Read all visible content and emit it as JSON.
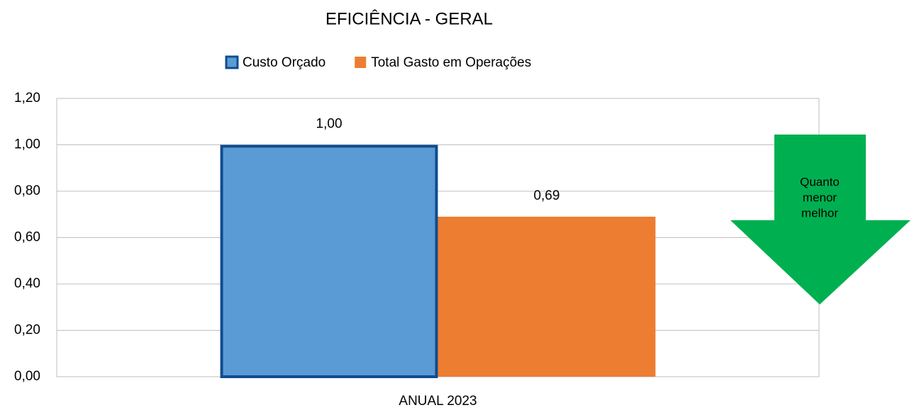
{
  "chart_data": {
    "type": "bar",
    "title": "EFICIÊNCIA - GERAL",
    "categories": [
      "ANUAL 2023"
    ],
    "series": [
      {
        "name": "Custo Orçado",
        "color": "#5b9bd5",
        "edgecolor": "#0f4c8f",
        "values": [
          1.0
        ],
        "value_labels": [
          "1,00"
        ]
      },
      {
        "name": "Total Gasto em Operações",
        "color": "#ed7d31",
        "values": [
          0.69
        ],
        "value_labels": [
          "0,69"
        ]
      }
    ],
    "ylim": [
      0,
      1.2
    ],
    "yticks": [
      {
        "value": 0,
        "label": "0,00"
      },
      {
        "value": 0.2,
        "label": "0,20"
      },
      {
        "value": 0.4,
        "label": "0,40"
      },
      {
        "value": 0.6,
        "label": "0,60"
      },
      {
        "value": 0.8,
        "label": "0,80"
      },
      {
        "value": 1.0,
        "label": "1,00"
      },
      {
        "value": 1.2,
        "label": "1,20"
      }
    ],
    "grid": true,
    "legend": "top",
    "annotation": {
      "lines": [
        "Quanto",
        "menor",
        "melhor"
      ],
      "color": "#00b050"
    }
  }
}
